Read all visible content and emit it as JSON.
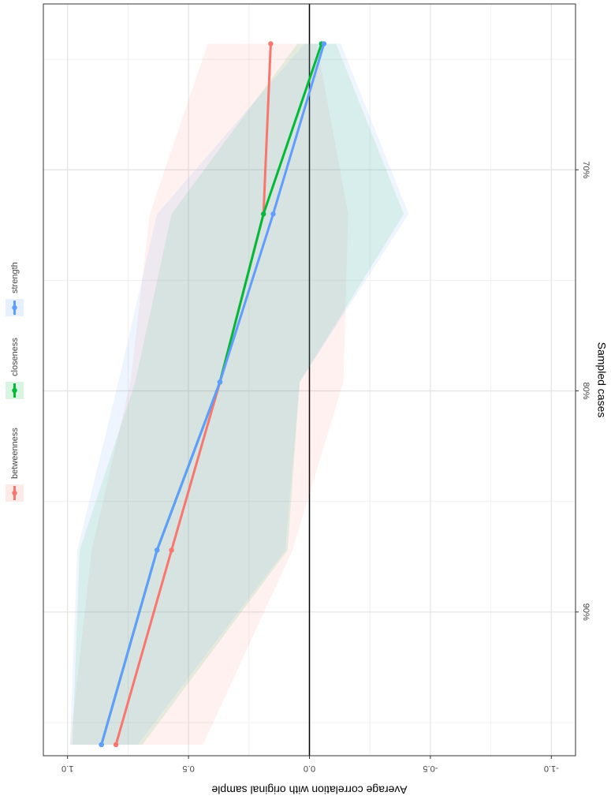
{
  "chart_data": {
    "type": "line",
    "x_label": "Sampled cases",
    "y_label": "Average correlation with original sample",
    "x": [
      64.3,
      72,
      79.6,
      87.2,
      96
    ],
    "xlim": [
      62.5,
      96.5
    ],
    "xticks": [
      {
        "value": 70,
        "label": "70%"
      },
      {
        "value": 80,
        "label": "80%"
      },
      {
        "value": 90,
        "label": "90%"
      }
    ],
    "minor_xticks": [
      65,
      75,
      85,
      95
    ],
    "ylim": [
      -1.1,
      1.1
    ],
    "yticks": [
      {
        "value": -1,
        "label": "-1.0"
      },
      {
        "value": -0.5,
        "label": "-0.5"
      },
      {
        "value": 0,
        "label": "0.0"
      },
      {
        "value": 0.5,
        "label": "0.5"
      },
      {
        "value": 1,
        "label": "1.0"
      }
    ],
    "minor_yticks": [
      -0.75,
      -0.25,
      0.25,
      0.75
    ],
    "grid": true,
    "series": [
      {
        "name": "betweenness",
        "color": "#F8766D",
        "values": [
          0.16,
          0.19,
          0.37,
          0.57,
          0.8
        ],
        "upper": [
          0.42,
          0.66,
          0.74,
          0.9,
          0.99
        ],
        "lower": [
          -0.03,
          -0.16,
          -0.14,
          0.07,
          0.44
        ]
      },
      {
        "name": "closeness",
        "color": "#00BA38",
        "values": [
          -0.05,
          0.19,
          0.37,
          0.63,
          0.86
        ],
        "upper": [
          0.05,
          0.57,
          0.72,
          0.95,
          0.98
        ],
        "lower": [
          -0.11,
          -0.39,
          0.04,
          0.09,
          0.69
        ]
      },
      {
        "name": "strength",
        "color": "#619CFF",
        "values": [
          -0.06,
          0.15,
          0.37,
          0.63,
          0.86
        ],
        "upper": [
          0.02,
          0.63,
          0.79,
          0.96,
          0.99
        ],
        "lower": [
          -0.13,
          -0.41,
          0.04,
          0.1,
          0.71
        ]
      }
    ]
  }
}
